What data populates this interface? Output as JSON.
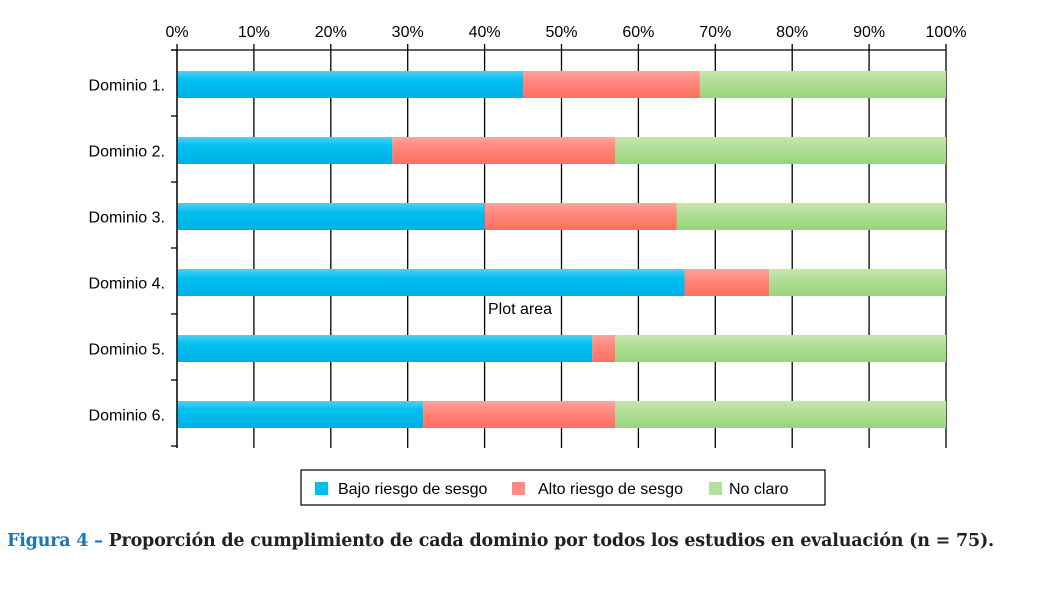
{
  "chart_data": {
    "type": "bar",
    "orientation": "horizontal",
    "stacked": true,
    "normalized": true,
    "title": "",
    "xlabel": "",
    "ylabel": "",
    "xlim": [
      0,
      100
    ],
    "x_ticks": [
      "0%",
      "10%",
      "20%",
      "30%",
      "40%",
      "50%",
      "60%",
      "70%",
      "80%",
      "90%",
      "100%"
    ],
    "x_axis_position": "top",
    "grid": true,
    "categories": [
      "Dominio 1.",
      "Dominio 2.",
      "Dominio 3.",
      "Dominio 4.",
      "Dominio 5.",
      "Dominio 6."
    ],
    "series": [
      {
        "name": "Bajo riesgo de sesgo",
        "color": "#00bfef",
        "color_light": "#4fd0f5",
        "color_dark": "#00b0e8",
        "values": [
          45,
          28,
          40,
          66,
          54,
          32
        ]
      },
      {
        "name": "Alto riesgo de sesgo",
        "color": "#ff8a80",
        "color_light": "#ffa49c",
        "color_dark": "#ff6e60",
        "values": [
          23,
          29,
          25,
          11,
          3,
          25
        ]
      },
      {
        "name": "No claro",
        "color": "#b3e09a",
        "color_light": "#c8e6ac",
        "color_dark": "#97d47a",
        "values": [
          32,
          43,
          35,
          23,
          43,
          43
        ]
      }
    ],
    "annotations": [
      {
        "text": "Plot area"
      }
    ],
    "legend": {
      "placement": "bottom",
      "entries": [
        "Bajo riesgo de sesgo",
        "Alto riesgo de sesgo",
        "No claro"
      ]
    }
  },
  "caption": {
    "figure_label": "Figura 4 –",
    "text": " Proporción de cumplimiento de cada dominio por todos los estudios en evaluación (n = 75)."
  }
}
